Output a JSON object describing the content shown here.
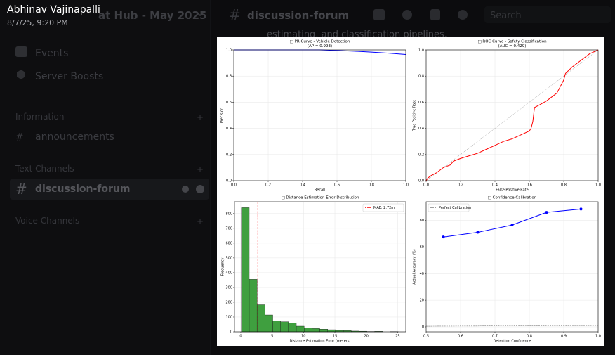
{
  "app": {
    "user_name": "Abhinav Vajinapalli",
    "timestamp": "8/7/25, 9:20 PM",
    "server_name": "at Hub - May 2025",
    "channel_header": "discussion-forum",
    "search": "Search",
    "message_text": "estimating, and classification pipelines.",
    "sidebar": {
      "items": [
        "Events",
        "Server Boosts"
      ],
      "categories": [
        "Information",
        "Text Channels",
        "Voice Channels"
      ],
      "channels": [
        "announcements",
        "discussion-forum"
      ]
    }
  },
  "chart_data": [
    {
      "type": "line",
      "title": "□ PR Curve - Vehicle Detection",
      "subtitle": "(AP = 0.993)",
      "xlabel": "Recall",
      "ylabel": "Precision",
      "xlim": [
        0,
        1
      ],
      "ylim": [
        0,
        1
      ],
      "xticks": [
        {
          "value": 0,
          "label": "0.0"
        },
        0.2,
        0.4,
        0.6,
        0.8,
        {
          "value": 1,
          "label": "1.0"
        }
      ],
      "yticks": [
        {
          "value": 0,
          "label": "0.0"
        },
        0.2,
        0.4,
        0.6,
        0.8,
        {
          "value": 1,
          "label": "1.0"
        }
      ],
      "grid": true,
      "series": [
        {
          "color": "#0000ff",
          "x": [
            0,
            0.5,
            0.6,
            0.7,
            0.8,
            0.9,
            1
          ],
          "values": [
            1,
            1,
            0.995,
            0.99,
            0.983,
            0.975,
            0.965
          ]
        }
      ]
    },
    {
      "type": "line",
      "title": "□ ROC Curve - Safety Classification",
      "subtitle": "(AUC = 0.429)",
      "xlabel": "False Positive Rate",
      "ylabel": "True Positive Rate",
      "xlim": [
        0,
        1
      ],
      "ylim": [
        0,
        1
      ],
      "reference_diagonal": true,
      "xticks": [
        {
          "value": 0,
          "label": "0.0"
        },
        0.2,
        0.4,
        0.6,
        0.8,
        {
          "value": 1,
          "label": "1.0"
        }
      ],
      "yticks": [
        {
          "value": 0,
          "label": "0.0"
        },
        0.2,
        0.4,
        0.6,
        0.8,
        {
          "value": 1,
          "label": "1.0"
        }
      ],
      "grid": true,
      "series": [
        {
          "color": "#ff0000",
          "x": [
            0,
            0.01,
            0.03,
            0.06,
            0.1,
            0.14,
            0.16,
            0.2,
            0.25,
            0.3,
            0.35,
            0.4,
            0.45,
            0.5,
            0.55,
            0.6,
            0.61,
            0.62,
            0.63,
            0.66,
            0.7,
            0.73,
            0.76,
            0.8,
            0.81,
            0.85,
            0.9,
            0.95,
            1
          ],
          "values": [
            0,
            0.02,
            0.04,
            0.06,
            0.1,
            0.12,
            0.15,
            0.17,
            0.19,
            0.21,
            0.24,
            0.27,
            0.3,
            0.32,
            0.35,
            0.38,
            0.4,
            0.45,
            0.56,
            0.58,
            0.61,
            0.64,
            0.67,
            0.77,
            0.82,
            0.87,
            0.92,
            0.97,
            1
          ]
        }
      ]
    },
    {
      "type": "histogram",
      "title": "□ Distance Estimation Error Distribution",
      "xlabel": "Distance Estimation Error (meters)",
      "ylabel": "Frequency",
      "xlim": [
        -1,
        26.3
      ],
      "ylim": [
        0,
        880
      ],
      "xticks": [
        0,
        5,
        10,
        15,
        20,
        25
      ],
      "yticks": [
        0,
        100,
        200,
        300,
        400,
        500,
        600,
        700,
        800
      ],
      "grid": true,
      "color": "#3f9f3f",
      "legend": "upper right",
      "bins": [
        0.1,
        1.35,
        2.6,
        3.85,
        5.1,
        6.35,
        7.6,
        8.85,
        10.1,
        11.35,
        12.6,
        13.85,
        15.1,
        16.35,
        17.6,
        18.85,
        20.1,
        21.35,
        22.6,
        23.85,
        25.1
      ],
      "values": [
        840,
        355,
        183,
        114,
        73,
        68,
        58,
        38,
        27,
        22,
        18,
        14,
        9,
        8,
        5,
        4,
        2,
        3,
        0,
        1
      ],
      "vline": {
        "value": 2.72,
        "label": "MAE: 2.72m",
        "color": "#ff0000"
      }
    },
    {
      "type": "line",
      "title": "□ Confidence Calibration",
      "xlabel": "Detection Confidence",
      "ylabel": "Actual Accuracy (%)",
      "xlim": [
        0.5,
        1
      ],
      "ylim": [
        -3.7,
        94
      ],
      "xticks": [
        0.5,
        0.6,
        0.7,
        0.8,
        0.9,
        {
          "value": 1,
          "label": "1.0"
        }
      ],
      "yticks": [
        0,
        20,
        40,
        60,
        80
      ],
      "grid": true,
      "legend": "upper left",
      "series": [
        {
          "name": "Perfect Calibration",
          "color": "#808080",
          "dashed": true,
          "x": [
            0.5,
            1
          ],
          "values": [
            0.5,
            1
          ]
        },
        {
          "color": "#0000ff",
          "marker": true,
          "x": [
            0.55,
            0.65,
            0.75,
            0.85,
            0.95
          ],
          "values": [
            67.5,
            71,
            76.5,
            86,
            88.5
          ]
        }
      ]
    }
  ]
}
